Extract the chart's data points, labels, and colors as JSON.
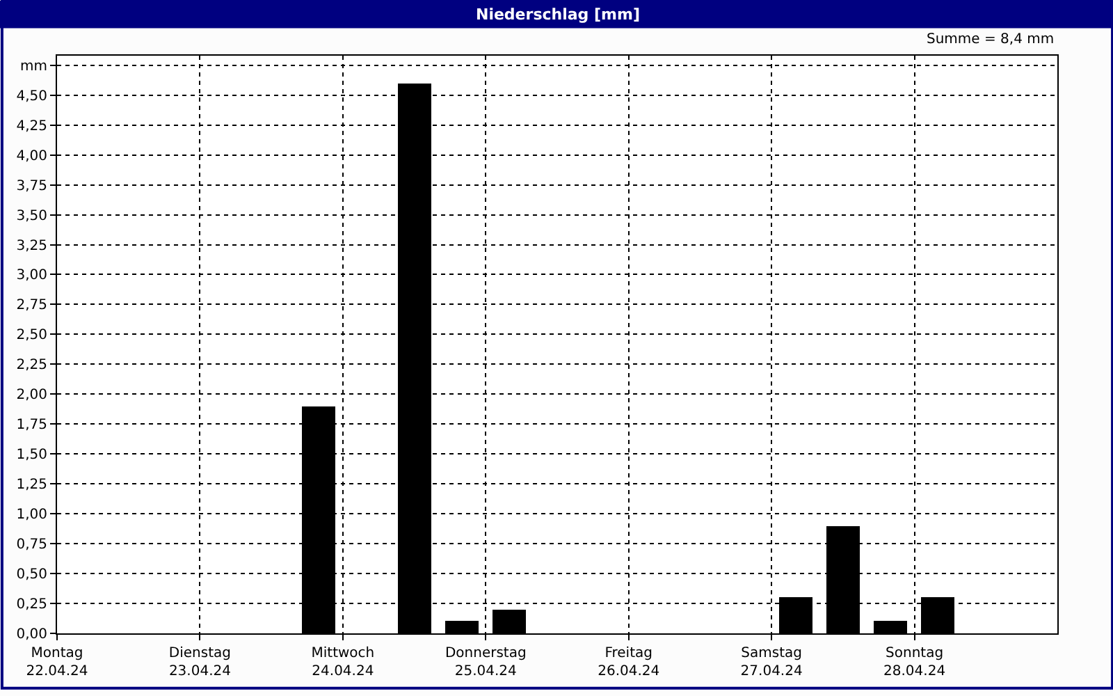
{
  "chart_data": {
    "type": "bar",
    "title": "Niederschlag [mm]",
    "annotations": [
      "Summe = 8,4 mm"
    ],
    "x": [
      "--04-23T20:00",
      "--04-24T12:00",
      "--04-24T20:00",
      "--04-25T04:00",
      "--04-27T04:00",
      "--04-27T12:00",
      "--04-27T20:00",
      "--04-28T04:00"
    ],
    "values": [
      1.9,
      4.6,
      0.1,
      0.2,
      0.3,
      0.9,
      0.1,
      0.3
    ],
    "color": "#000000",
    "xlim": [
      "--04-22",
      "--04-29"
    ],
    "xticks": [
      {
        "value": "--04-22",
        "label": "Montag\n22.04.24"
      },
      {
        "value": "--04-23",
        "label": "Dienstag\n23.04.24"
      },
      {
        "value": "--04-24",
        "label": "Mittwoch\n24.04.24"
      },
      {
        "value": "--04-25",
        "label": "Donnerstag\n25.04.24"
      },
      {
        "value": "--04-26",
        "label": "Freitag\n26.04.24"
      },
      {
        "value": "--04-27",
        "label": "Samstag\n27.04.24"
      },
      {
        "value": "--04-28",
        "label": "Sonntag\n28.04.24"
      }
    ],
    "ylim": [
      0,
      4.83
    ],
    "yticks": [
      {
        "value": 0,
        "label": "0,00"
      },
      {
        "value": 0.25,
        "label": "0,25"
      },
      {
        "value": 0.5,
        "label": "0,50"
      },
      {
        "value": 0.75,
        "label": "0,75"
      },
      {
        "value": 1,
        "label": "1,00"
      },
      {
        "value": 1.25,
        "label": "1,25"
      },
      {
        "value": 1.5,
        "label": "1,50"
      },
      {
        "value": 1.75,
        "label": "1,75"
      },
      {
        "value": 2,
        "label": "2,00"
      },
      {
        "value": 2.25,
        "label": "2,25"
      },
      {
        "value": 2.5,
        "label": "2,50"
      },
      {
        "value": 2.75,
        "label": "2,75"
      },
      {
        "value": 3,
        "label": "3,00"
      },
      {
        "value": 3.25,
        "label": "3,25"
      },
      {
        "value": 3.5,
        "label": "3,50"
      },
      {
        "value": 3.75,
        "label": "3,75"
      },
      {
        "value": 4,
        "label": "4,00"
      },
      {
        "value": 4.25,
        "label": "4,25"
      },
      {
        "value": 4.5,
        "label": "4,50"
      },
      {
        "value": 4.75,
        "label": "mm"
      }
    ],
    "grid": true,
    "line_style": "dashed"
  }
}
